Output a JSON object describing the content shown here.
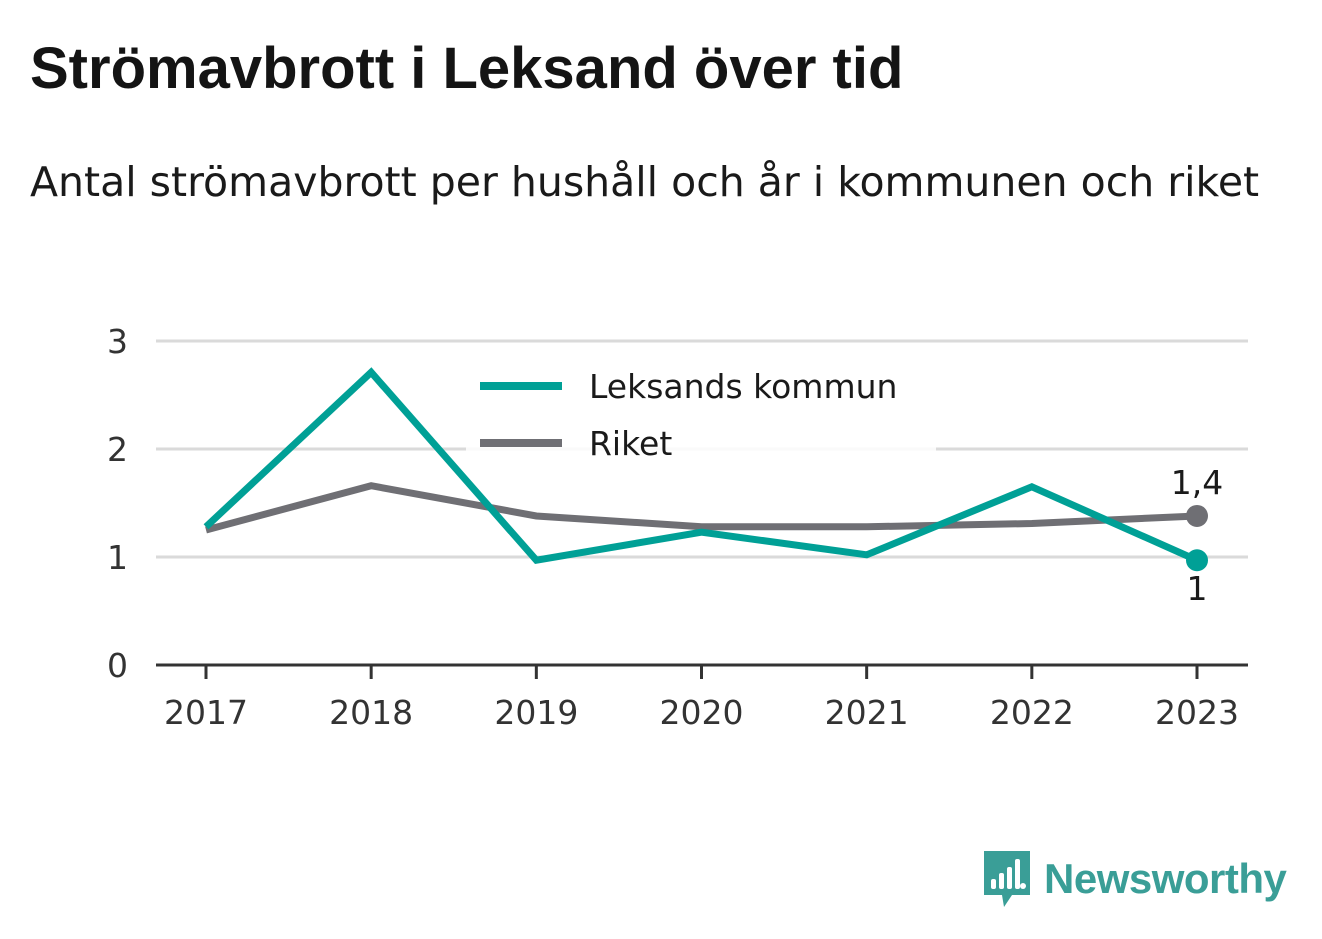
{
  "title": "Strömavbrott i Leksand över tid",
  "subtitle": "Antal strömavbrott per hushåll och år i kommunen och riket",
  "brand": {
    "name": "Newsworthy",
    "icon": "newsworthy-chart-icon",
    "color": "#3a9e97"
  },
  "chart_data": {
    "type": "line",
    "title": "Strömavbrott i Leksand över tid",
    "subtitle": "Antal strömavbrott per hushåll och år i kommunen och riket",
    "xlabel": "",
    "ylabel": "",
    "categories": [
      "2017",
      "2018",
      "2019",
      "2020",
      "2021",
      "2022",
      "2023"
    ],
    "y_ticks": [
      "0",
      "1",
      "2",
      "3"
    ],
    "ylim": [
      0,
      3
    ],
    "grid": true,
    "legend_position": "top-center",
    "series": [
      {
        "name": "Leksands kommun",
        "color": "#00a096",
        "values": [
          1.28,
          2.71,
          0.97,
          1.23,
          1.02,
          1.65,
          0.97
        ],
        "end_label": "1"
      },
      {
        "name": "Riket",
        "color": "#6f6f74",
        "values": [
          1.25,
          1.66,
          1.38,
          1.28,
          1.28,
          1.31,
          1.38
        ],
        "end_label": "1,4"
      }
    ]
  }
}
